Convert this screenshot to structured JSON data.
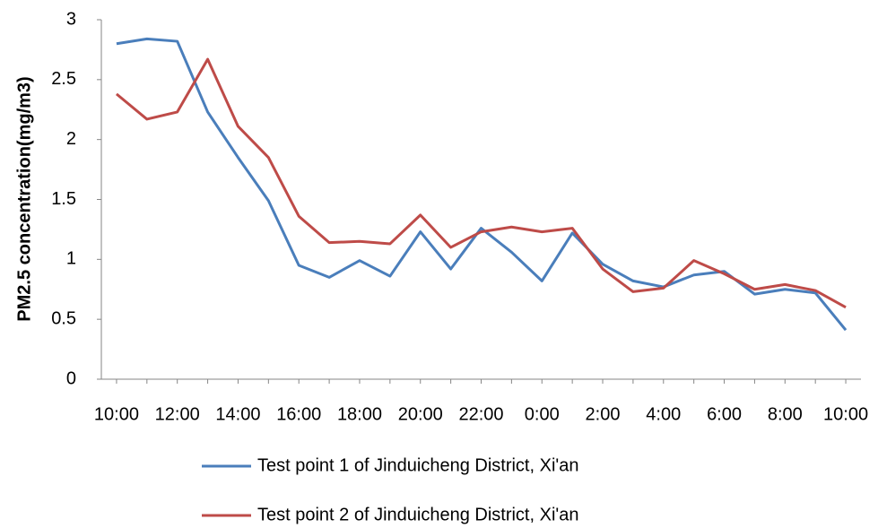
{
  "chart_data": {
    "type": "line",
    "y_label": "PM2.5 concentration(mg/m3)",
    "categories": [
      "10:00",
      null,
      "12:00",
      null,
      "14:00",
      null,
      "16:00",
      null,
      "18:00",
      null,
      "20:00",
      null,
      "22:00",
      null,
      "0:00",
      null,
      "2:00",
      null,
      "4:00",
      null,
      "6:00",
      null,
      "8:00",
      null,
      "10:00"
    ],
    "series": [
      {
        "name": "Test point 1 of Jinduicheng District, Xi'an",
        "color": "#4a7ebb",
        "values": [
          2.8,
          2.84,
          2.82,
          2.23,
          1.85,
          1.49,
          0.95,
          0.85,
          0.99,
          0.86,
          1.23,
          0.92,
          1.26,
          1.06,
          0.82,
          1.22,
          0.96,
          0.82,
          0.77,
          0.87,
          0.9,
          0.71,
          0.75,
          0.72,
          0.41
        ]
      },
      {
        "name": "Test point 2 of Jinduicheng District, Xi'an",
        "color": "#be4b48",
        "values": [
          2.38,
          2.17,
          2.23,
          2.67,
          2.11,
          1.85,
          1.36,
          1.14,
          1.15,
          1.13,
          1.37,
          1.1,
          1.23,
          1.27,
          1.23,
          1.26,
          0.92,
          0.73,
          0.76,
          0.99,
          0.88,
          0.75,
          0.79,
          0.74,
          0.6
        ]
      }
    ],
    "ylim": [
      0,
      3
    ],
    "yticks": [
      0,
      0.5,
      1,
      1.5,
      2,
      2.5,
      3
    ],
    "grid": false,
    "legend": "bottom"
  }
}
